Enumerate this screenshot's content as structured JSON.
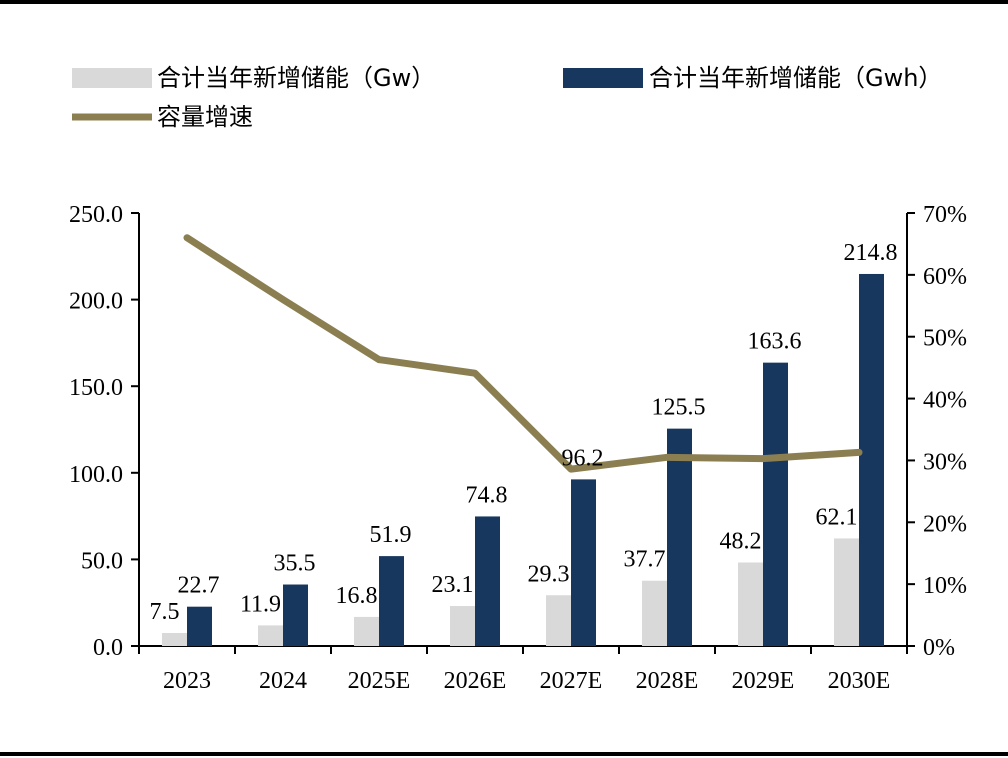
{
  "chart_data": {
    "type": "bar",
    "categories": [
      "2023",
      "2024",
      "2025E",
      "2026E",
      "2027E",
      "2028E",
      "2029E",
      "2030E"
    ],
    "series": [
      {
        "name": "合计当年新增储能（Gw）",
        "type": "bar",
        "axis": "left",
        "color": "#d9d9d9",
        "values": [
          7.5,
          11.9,
          16.8,
          23.1,
          29.3,
          37.7,
          48.2,
          62.1
        ]
      },
      {
        "name": "合计当年新增储能（Gwh）",
        "type": "bar",
        "axis": "left",
        "color": "#17375e",
        "values": [
          22.7,
          35.5,
          51.9,
          74.8,
          96.2,
          125.5,
          163.6,
          214.8
        ]
      },
      {
        "name": "容量增速",
        "type": "line",
        "axis": "right",
        "color": "#8b7f52",
        "values": [
          0.66,
          0.56,
          0.463,
          0.441,
          0.286,
          0.305,
          0.303,
          0.313
        ]
      }
    ],
    "left_axis": {
      "ylim": [
        0,
        250
      ],
      "ticks": [
        "0.0",
        "50.0",
        "100.0",
        "150.0",
        "200.0",
        "250.0"
      ]
    },
    "right_axis": {
      "ylim": [
        0,
        0.7
      ],
      "ticks": [
        "0%",
        "10%",
        "20%",
        "30%",
        "40%",
        "50%",
        "60%",
        "70%"
      ]
    },
    "legend": "top",
    "grid": false
  }
}
